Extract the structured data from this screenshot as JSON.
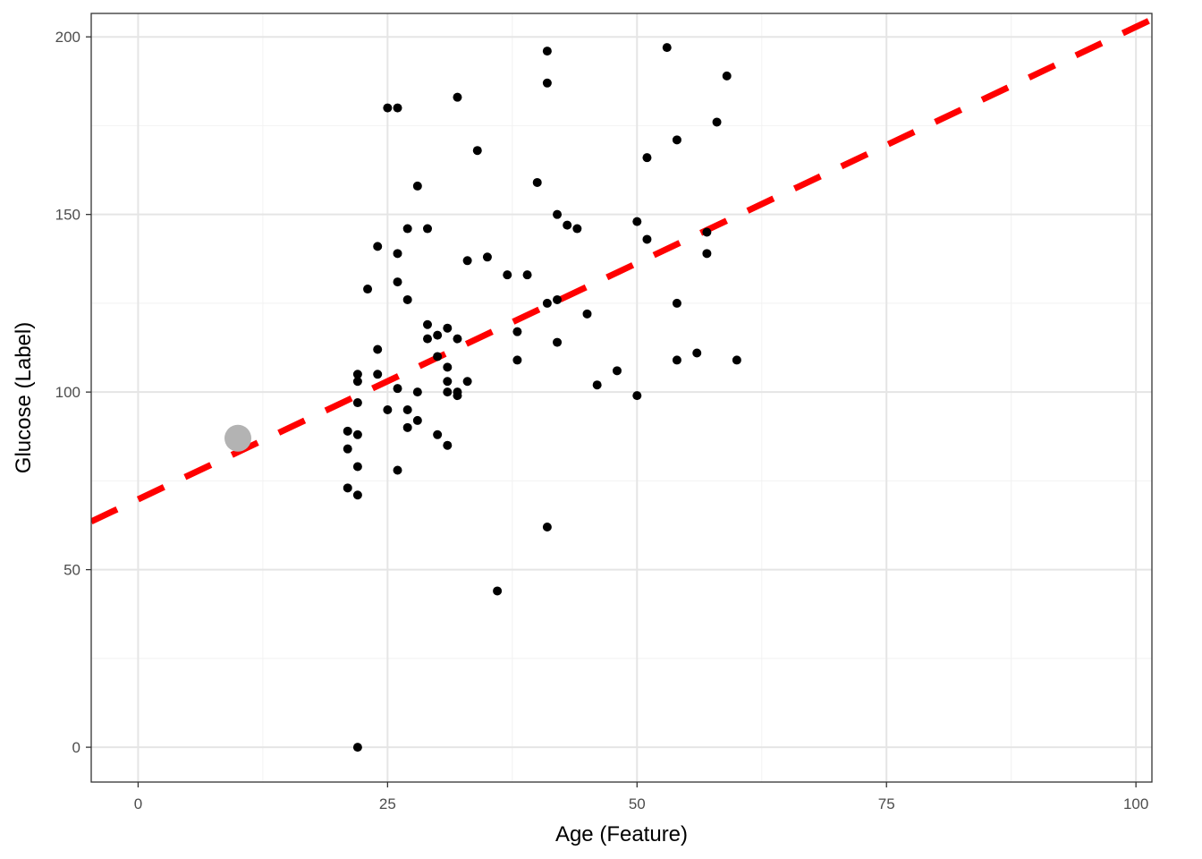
{
  "chart_data": {
    "type": "scatter",
    "title": "",
    "xlabel": "Age (Feature)",
    "ylabel": "Glucose (Label)",
    "xlim": [
      -4.7,
      101.6
    ],
    "ylim": [
      -9.8,
      206.6
    ],
    "x_ticks": [
      0,
      25,
      50,
      75,
      100
    ],
    "y_ticks": [
      0,
      50,
      100,
      150,
      200
    ],
    "x_tick_labels": [
      "0",
      "25",
      "50",
      "75",
      "100"
    ],
    "y_tick_labels": [
      "0",
      "50",
      "100",
      "150",
      "200"
    ],
    "grid": true,
    "legend": "none",
    "colors": {
      "points": "#000000",
      "fit_line": "#ff0000",
      "highlight_point": "#b3b3b3",
      "grid_major": "#e5e5e5",
      "grid_minor": "#f2f2f2",
      "panel_border": "#333333"
    },
    "fit_line": {
      "style": "dashed",
      "intercept": 69.8,
      "slope": 1.33
    },
    "highlighted_point": {
      "x": 10,
      "y": 87
    },
    "points": [
      [
        22,
        0
      ],
      [
        36,
        44
      ],
      [
        41,
        62
      ],
      [
        21,
        73
      ],
      [
        22,
        71
      ],
      [
        26,
        78
      ],
      [
        22,
        79
      ],
      [
        21,
        84
      ],
      [
        31,
        85
      ],
      [
        21,
        89
      ],
      [
        22,
        88
      ],
      [
        30,
        88
      ],
      [
        27,
        90
      ],
      [
        28,
        92
      ],
      [
        25,
        95
      ],
      [
        27,
        95
      ],
      [
        22,
        97
      ],
      [
        26,
        101
      ],
      [
        28,
        100
      ],
      [
        31,
        100
      ],
      [
        32,
        100
      ],
      [
        32,
        99
      ],
      [
        50,
        99
      ],
      [
        22,
        103
      ],
      [
        22,
        105
      ],
      [
        24,
        105
      ],
      [
        31,
        103
      ],
      [
        33,
        103
      ],
      [
        46,
        102
      ],
      [
        31,
        107
      ],
      [
        48,
        106
      ],
      [
        38,
        109
      ],
      [
        54,
        109
      ],
      [
        56,
        111
      ],
      [
        60,
        109
      ],
      [
        30,
        110
      ],
      [
        24,
        112
      ],
      [
        29,
        115
      ],
      [
        30,
        116
      ],
      [
        32,
        115
      ],
      [
        42,
        114
      ],
      [
        29,
        119
      ],
      [
        31,
        118
      ],
      [
        38,
        117
      ],
      [
        45,
        122
      ],
      [
        41,
        125
      ],
      [
        42,
        126
      ],
      [
        27,
        126
      ],
      [
        54,
        125
      ],
      [
        23,
        129
      ],
      [
        26,
        131
      ],
      [
        37,
        133
      ],
      [
        39,
        133
      ],
      [
        33,
        137
      ],
      [
        35,
        138
      ],
      [
        26,
        139
      ],
      [
        57,
        139
      ],
      [
        24,
        141
      ],
      [
        27,
        146
      ],
      [
        29,
        146
      ],
      [
        44,
        146
      ],
      [
        43,
        147
      ],
      [
        50,
        148
      ],
      [
        42,
        150
      ],
      [
        51,
        143
      ],
      [
        57,
        145
      ],
      [
        28,
        158
      ],
      [
        40,
        159
      ],
      [
        51,
        166
      ],
      [
        34,
        168
      ],
      [
        54,
        171
      ],
      [
        58,
        176
      ],
      [
        25,
        180
      ],
      [
        26,
        180
      ],
      [
        32,
        183
      ],
      [
        41,
        187
      ],
      [
        59,
        189
      ],
      [
        41,
        196
      ],
      [
        53,
        197
      ]
    ]
  }
}
